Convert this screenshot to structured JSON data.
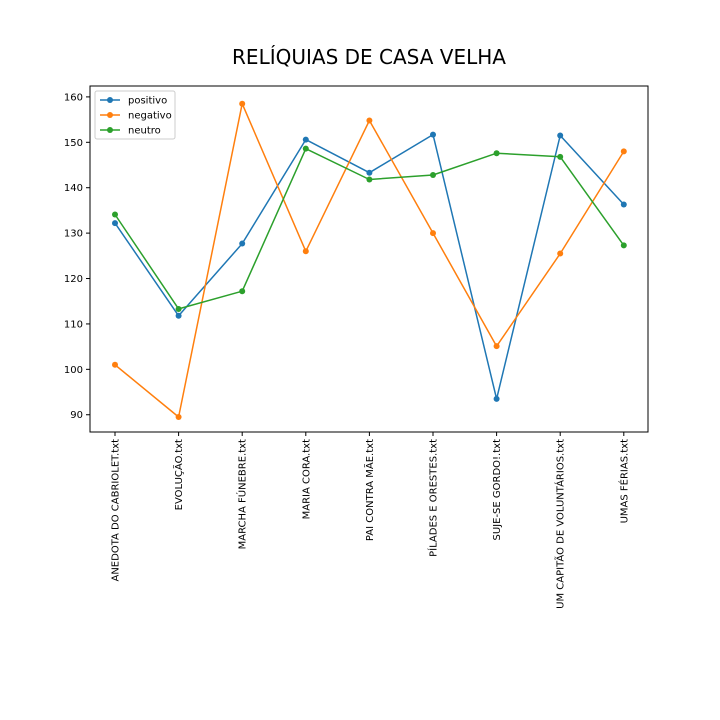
{
  "chart_data": {
    "type": "line",
    "title": "RELÍQUIAS DE CASA VELHA",
    "xlabel": "",
    "ylabel": "",
    "categories": [
      "ANEDOTA DO CABRIOLET.txt",
      "EVOLUÇÃO.txt",
      "MARCHA FÚNEBRE.txt",
      "MARIA CORA.txt",
      "PAI CONTRA MÃE.txt",
      "PÍLADES E ORESTES.txt",
      "SUJE-SE GORDO!.txt",
      "UM CAPITÃO DE VOLUNTÁRIOS.txt",
      "UMAS FÉRIAS.txt"
    ],
    "series": [
      {
        "name": "positivo",
        "color": "#1f77b4",
        "values": [
          132.2,
          111.8,
          127.7,
          150.6,
          143.3,
          151.7,
          93.5,
          151.5,
          136.3
        ]
      },
      {
        "name": "negativo",
        "color": "#ff7f0e",
        "values": [
          101.0,
          89.5,
          158.5,
          126.0,
          154.8,
          130.0,
          105.1,
          125.5,
          148.0
        ]
      },
      {
        "name": "neutro",
        "color": "#2ca02c",
        "values": [
          134.1,
          113.3,
          117.2,
          148.6,
          141.8,
          142.8,
          147.6,
          146.8,
          127.3
        ]
      }
    ],
    "ylim": [
      86.2,
      162.4
    ],
    "yticks": [
      90,
      100,
      110,
      120,
      130,
      140,
      150,
      160
    ],
    "grid": false,
    "legend_position": "upper left"
  }
}
